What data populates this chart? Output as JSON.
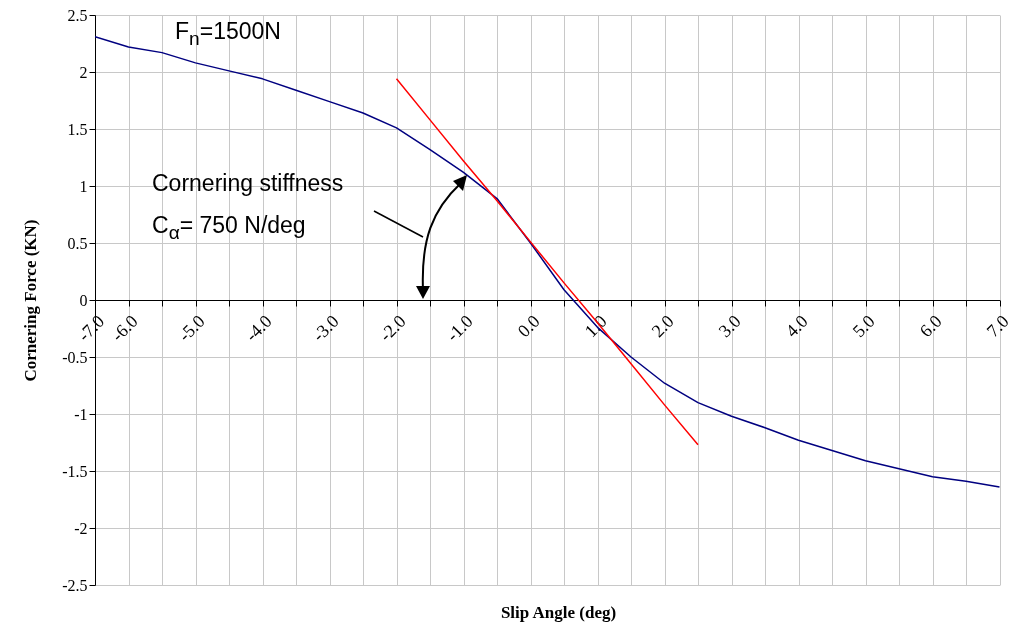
{
  "chart_data": {
    "type": "line",
    "xlabel": "Slip Angle (deg)",
    "ylabel": "Cornering Force (KN)",
    "annotations": [
      "F$_{n}$=1500N",
      "Cornering stiffness",
      "C$_{α}$= 750 N/deg"
    ],
    "categories": [
      "-7.0",
      "-6.0",
      null,
      "-5.0",
      null,
      "-4.0",
      null,
      "-3.0",
      null,
      "-2.0",
      null,
      "-1.0",
      null,
      "0.0",
      null,
      "1.0",
      null,
      "2.0",
      null,
      "3.0",
      null,
      "4.0",
      null,
      "5.0",
      null,
      "6.0",
      null,
      "7.0"
    ],
    "ylim": [
      -2.5,
      2.5
    ],
    "yticks": [
      -2.5,
      -2,
      -1.5,
      -1,
      -0.5,
      0,
      0.5,
      1,
      1.5,
      2,
      2.5
    ],
    "grid": true,
    "series": [
      {
        "color": "#000080",
        "values": [
          2.31,
          2.22,
          2.17,
          2.08,
          2.01,
          1.94,
          1.84,
          1.74,
          1.64,
          1.51,
          1.32,
          1.12,
          0.89,
          0.5,
          0.09,
          -0.24,
          -0.5,
          -0.73,
          -0.9,
          -1.02,
          -1.12,
          -1.23,
          -1.32,
          -1.41,
          -1.48,
          -1.55,
          -1.59,
          -1.64
        ]
      },
      {
        "type": "line",
        "color": "#ff0000",
        "values": [
          null,
          null,
          null,
          null,
          null,
          null,
          null,
          null,
          null,
          1.94,
          1.58,
          1.22,
          0.87,
          0.51,
          0.15,
          -0.2,
          -0.56,
          -0.92,
          -1.27,
          null,
          null,
          null,
          null,
          null,
          null,
          null,
          null,
          null
        ]
      }
    ]
  }
}
